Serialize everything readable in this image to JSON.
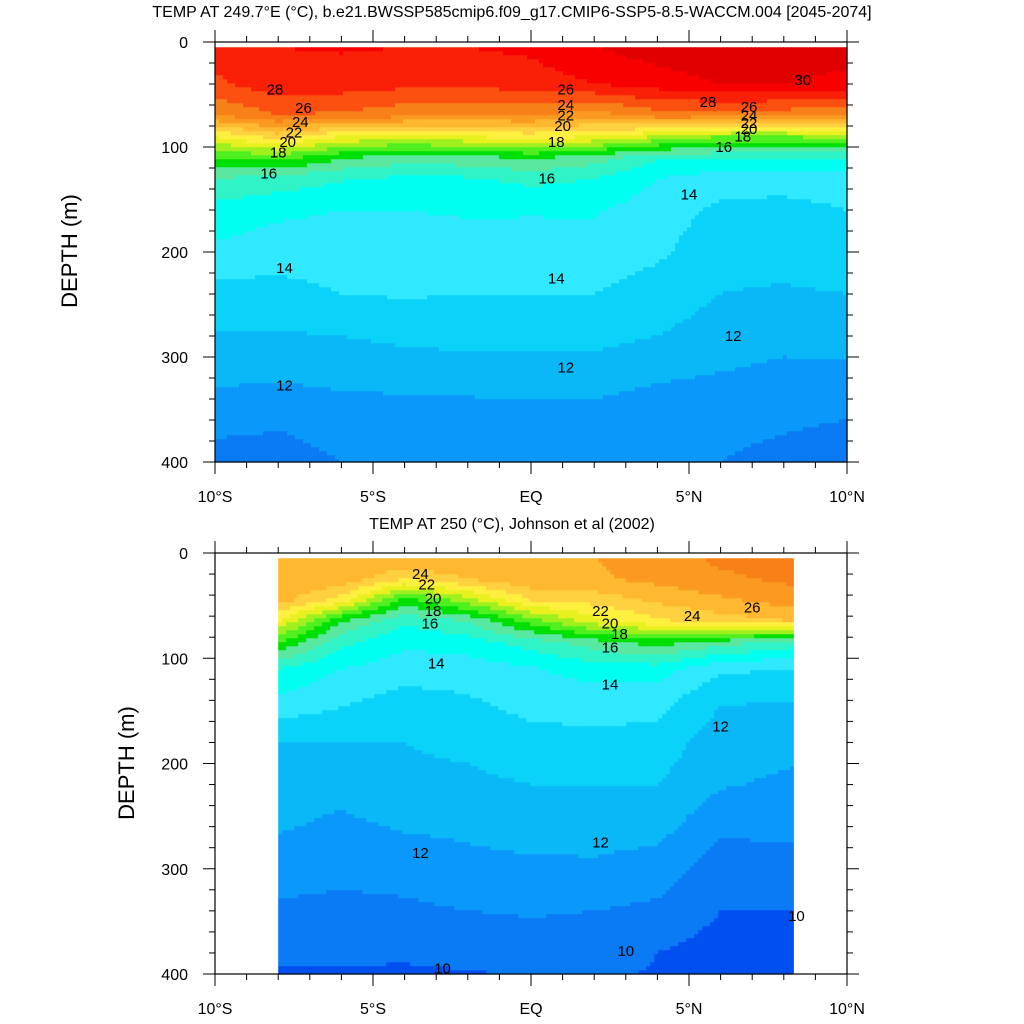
{
  "panel_titles": [
    "TEMP AT 249.7°E (°C), b.e21.BWSSP585cmip6.f09_g17.CMIP6-SSP5-8.5-WACCM.004 [2045-2074]",
    "TEMP AT 250 (°C), Johnson et al (2002)"
  ],
  "y_axis_label": "DEPTH (m)",
  "colors": {
    "levels": [
      9,
      10,
      11,
      12,
      13,
      14,
      15,
      16,
      17,
      18,
      19,
      20,
      21,
      22,
      23,
      24,
      25,
      26,
      27,
      28,
      29,
      30,
      31
    ],
    "fills": [
      "#0050f0",
      "#0a7af5",
      "#0a98fa",
      "#0ab8f8",
      "#0ad2f8",
      "#30e8ff",
      "#00fff0",
      "#30f4c8",
      "#5ae8a0",
      "#00e000",
      "#50f020",
      "#a0f020",
      "#e8f020",
      "#fff040",
      "#ffd040",
      "#ffb830",
      "#fb9a20",
      "#f88018",
      "#fc5010",
      "#fa2008",
      "#f80000",
      "#e00000",
      "#c80000"
    ]
  },
  "chart_data": [
    {
      "type": "contour",
      "title": "TEMP AT 249.7°E (°C), b.e21.BWSSP585cmip6.f09_g17.CMIP6-SSP5-8.5-WACCM.004 [2045-2074]",
      "variable": "TEMP",
      "units": "°C",
      "ylabel": "DEPTH (m)",
      "xlim": [
        -10,
        10
      ],
      "ylim": [
        0,
        400
      ],
      "y_inverted": true,
      "x_ticks": [
        -10,
        -5,
        0,
        5,
        10
      ],
      "x_tick_labels": [
        "10°S",
        "5°S",
        "EQ",
        "5°N",
        "10°N"
      ],
      "y_ticks": [
        0,
        100,
        200,
        300,
        400
      ],
      "data_x_range": [
        -10,
        10
      ],
      "data_y_range": [
        5,
        400
      ],
      "levels": [
        10,
        11,
        12,
        13,
        14,
        15,
        16,
        17,
        18,
        19,
        20,
        21,
        22,
        23,
        24,
        25,
        26,
        27,
        28,
        29,
        30
      ],
      "lat": [
        -10,
        -8,
        -6,
        -4,
        -2,
        0,
        2,
        4,
        6,
        8,
        10
      ],
      "depth": [
        5,
        40,
        70,
        90,
        110,
        130,
        160,
        200,
        240,
        280,
        320,
        360,
        400
      ],
      "temperature": [
        [
          28.5,
          27.8,
          26.0,
          22.0,
          19.0,
          17.0,
          15.6,
          14.8,
          13.6,
          12.9,
          12.2,
          11.3,
          10.6
        ],
        [
          29.0,
          28.6,
          27.0,
          23.5,
          19.5,
          16.6,
          15.2,
          14.5,
          13.6,
          12.9,
          12.1,
          11.1,
          10.7
        ],
        [
          29.1,
          28.5,
          26.8,
          22.0,
          18.2,
          16.1,
          15.0,
          14.5,
          14.0,
          13.0,
          12.3,
          11.3,
          11.0
        ],
        [
          29.0,
          28.3,
          26.3,
          21.5,
          17.5,
          15.8,
          15.0,
          14.6,
          14.1,
          13.2,
          12.4,
          11.4,
          11.0
        ],
        [
          29.0,
          28.3,
          26.0,
          22.0,
          17.7,
          15.9,
          15.1,
          14.6,
          14.0,
          13.3,
          12.5,
          11.4,
          11.0
        ],
        [
          29.2,
          28.5,
          26.0,
          22.5,
          18.2,
          16.3,
          15.1,
          14.5,
          14.0,
          13.3,
          12.5,
          11.5,
          11.1
        ],
        [
          30.0,
          29.0,
          25.5,
          22.0,
          17.5,
          16.0,
          15.1,
          14.6,
          14.0,
          13.3,
          12.5,
          11.5,
          11.1
        ],
        [
          30.5,
          29.5,
          26.5,
          21.0,
          16.2,
          15.0,
          14.5,
          14.2,
          13.5,
          13.0,
          12.1,
          11.3,
          11.0
        ],
        [
          30.8,
          30.0,
          26.5,
          20.0,
          16.2,
          14.4,
          13.8,
          13.3,
          13.0,
          12.6,
          11.9,
          11.2,
          11.0
        ],
        [
          30.8,
          30.0,
          26.3,
          20.0,
          16.0,
          14.4,
          13.7,
          13.3,
          12.9,
          12.3,
          11.7,
          11.1,
          10.8
        ],
        [
          30.6,
          29.6,
          26.0,
          20.5,
          16.0,
          14.5,
          14.0,
          13.5,
          13.0,
          12.4,
          11.7,
          11.0,
          10.6
        ]
      ],
      "contour_labels": [
        {
          "text": "28",
          "lat": -8.1,
          "depth": 45
        },
        {
          "text": "26",
          "lat": -7.2,
          "depth": 63
        },
        {
          "text": "24",
          "lat": -7.3,
          "depth": 76
        },
        {
          "text": "22",
          "lat": -7.5,
          "depth": 86
        },
        {
          "text": "20",
          "lat": -7.7,
          "depth": 95
        },
        {
          "text": "18",
          "lat": -8.0,
          "depth": 105
        },
        {
          "text": "16",
          "lat": -8.3,
          "depth": 125
        },
        {
          "text": "14",
          "lat": -7.8,
          "depth": 215
        },
        {
          "text": "14",
          "lat": 0.8,
          "depth": 225
        },
        {
          "text": "12",
          "lat": -7.8,
          "depth": 327
        },
        {
          "text": "12",
          "lat": 1.1,
          "depth": 310
        },
        {
          "text": "26",
          "lat": 1.1,
          "depth": 45
        },
        {
          "text": "24",
          "lat": 1.1,
          "depth": 60
        },
        {
          "text": "22",
          "lat": 1.1,
          "depth": 70
        },
        {
          "text": "20",
          "lat": 1.0,
          "depth": 80
        },
        {
          "text": "18",
          "lat": 0.8,
          "depth": 95
        },
        {
          "text": "16",
          "lat": 0.5,
          "depth": 130
        },
        {
          "text": "28",
          "lat": 5.6,
          "depth": 57
        },
        {
          "text": "30",
          "lat": 8.6,
          "depth": 36
        },
        {
          "text": "26",
          "lat": 6.9,
          "depth": 62
        },
        {
          "text": "24",
          "lat": 6.9,
          "depth": 70
        },
        {
          "text": "22",
          "lat": 6.9,
          "depth": 77
        },
        {
          "text": "20",
          "lat": 6.9,
          "depth": 83
        },
        {
          "text": "18",
          "lat": 6.7,
          "depth": 90
        },
        {
          "text": "16",
          "lat": 6.1,
          "depth": 100
        },
        {
          "text": "14",
          "lat": 5.0,
          "depth": 145
        },
        {
          "text": "12",
          "lat": 6.4,
          "depth": 280
        }
      ]
    },
    {
      "type": "contour",
      "title": "TEMP AT 250 (°C), Johnson et al (2002)",
      "variable": "TEMP",
      "units": "°C",
      "ylabel": "DEPTH (m)",
      "xlim": [
        -10,
        10
      ],
      "ylim": [
        0,
        400
      ],
      "y_inverted": true,
      "x_ticks": [
        -10,
        -5,
        0,
        5,
        10
      ],
      "x_tick_labels": [
        "10°S",
        "5°S",
        "EQ",
        "5°N",
        "10°N"
      ],
      "y_ticks": [
        0,
        100,
        200,
        300,
        400
      ],
      "data_x_range": [
        -8,
        8.3
      ],
      "data_y_range": [
        5,
        400
      ],
      "levels": [
        10,
        11,
        12,
        13,
        14,
        15,
        16,
        17,
        18,
        19,
        20,
        21,
        22,
        23,
        24,
        25,
        26,
        27,
        28
      ],
      "lat": [
        -8,
        -6,
        -4,
        -2,
        0,
        2,
        4,
        6,
        8.3
      ],
      "depth": [
        5,
        25,
        45,
        65,
        85,
        110,
        140,
        180,
        220,
        260,
        300,
        340,
        380,
        400
      ],
      "temperature": [
        [
          25.0,
          24.8,
          24.5,
          22.0,
          19.0,
          16.0,
          14.8,
          13.0,
          12.5,
          12.1,
          11.5,
          10.8,
          10.4,
          9.8
        ],
        [
          25.0,
          24.7,
          22.5,
          18.0,
          16.3,
          15.0,
          14.2,
          13.0,
          12.3,
          11.8,
          11.3,
          10.7,
          10.2,
          9.9
        ],
        [
          25.0,
          23.0,
          18.5,
          16.2,
          15.2,
          14.5,
          13.6,
          13.0,
          12.8,
          12.1,
          11.4,
          10.8,
          10.2,
          9.8
        ],
        [
          25.0,
          24.0,
          20.5,
          17.0,
          15.5,
          14.5,
          13.9,
          13.2,
          12.8,
          12.2,
          11.7,
          11.0,
          10.4,
          9.9
        ],
        [
          25.0,
          24.8,
          23.0,
          19.5,
          16.5,
          14.9,
          14.4,
          13.6,
          13.0,
          12.4,
          11.8,
          11.1,
          10.5,
          10.1
        ],
        [
          25.0,
          24.8,
          23.4,
          21.5,
          17.5,
          15.5,
          14.4,
          13.8,
          13.0,
          12.5,
          11.8,
          11.0,
          10.5,
          10.2
        ],
        [
          25.5,
          25.3,
          24.2,
          22.8,
          18.5,
          15.5,
          14.4,
          13.6,
          13.0,
          12.4,
          11.5,
          10.8,
          10.0,
          9.9
        ],
        [
          26.2,
          25.8,
          24.8,
          23.5,
          17.5,
          14.2,
          13.1,
          12.4,
          12.1,
          11.2,
          10.5,
          10.0,
          9.6,
          9.4
        ],
        [
          26.5,
          26.2,
          25.5,
          24.0,
          16.5,
          14.0,
          13.0,
          12.3,
          11.8,
          11.2,
          10.7,
          10.0,
          9.7,
          9.5
        ]
      ],
      "contour_labels": [
        {
          "text": "24",
          "lat": -3.5,
          "depth": 20
        },
        {
          "text": "22",
          "lat": -3.3,
          "depth": 30
        },
        {
          "text": "20",
          "lat": -3.1,
          "depth": 43
        },
        {
          "text": "18",
          "lat": -3.1,
          "depth": 55
        },
        {
          "text": "16",
          "lat": -3.2,
          "depth": 67
        },
        {
          "text": "14",
          "lat": -3.0,
          "depth": 105
        },
        {
          "text": "14",
          "lat": 2.5,
          "depth": 125
        },
        {
          "text": "22",
          "lat": 2.2,
          "depth": 55
        },
        {
          "text": "20",
          "lat": 2.5,
          "depth": 67
        },
        {
          "text": "18",
          "lat": 2.8,
          "depth": 77
        },
        {
          "text": "16",
          "lat": 2.5,
          "depth": 90
        },
        {
          "text": "24",
          "lat": 5.1,
          "depth": 60
        },
        {
          "text": "26",
          "lat": 7.0,
          "depth": 52
        },
        {
          "text": "12",
          "lat": 6.0,
          "depth": 165
        },
        {
          "text": "12",
          "lat": -3.5,
          "depth": 285
        },
        {
          "text": "12",
          "lat": 2.2,
          "depth": 275
        },
        {
          "text": "10",
          "lat": 8.4,
          "depth": 345
        },
        {
          "text": "10",
          "lat": -2.8,
          "depth": 395
        },
        {
          "text": "10",
          "lat": 3.0,
          "depth": 378
        }
      ]
    }
  ]
}
